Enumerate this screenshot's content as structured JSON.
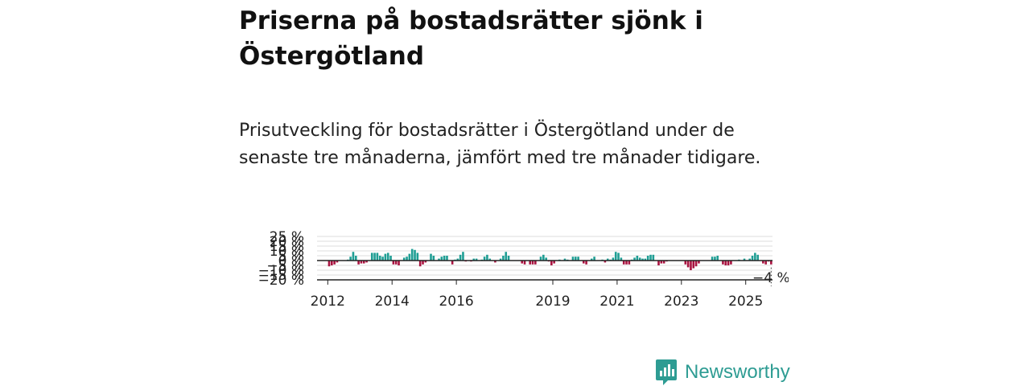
{
  "title": "Priserna på bostadsrätter sjönk i Östergötland",
  "subtitle": "Prisutveckling för bostadsrätter i Östergötland under de senaste tre månaderna, jämfört med tre månader tidigare.",
  "brand": {
    "name": "Newsworthy",
    "logo_icon": "bar-chart-speech-bubble-icon"
  },
  "colors": {
    "positive": "#1f9e94",
    "negative": "#a8123f",
    "brand": "#2e9c93"
  },
  "chart_data": {
    "type": "bar",
    "title": "",
    "xlabel": "",
    "ylabel": "",
    "ylim": [
      -20,
      25
    ],
    "yticks": [
      -20,
      -15,
      -10,
      -5,
      0,
      5,
      10,
      15,
      20,
      25
    ],
    "ytick_labels": [
      "−20 %",
      "−15 %",
      "−10 %",
      "−5 %",
      "0 %",
      "5 %",
      "10 %",
      "15 %",
      "20 %",
      "25 %"
    ],
    "xticks": [
      {
        "year": 2012,
        "label": "2012"
      },
      {
        "year": 2014,
        "label": "2014"
      },
      {
        "year": 2016,
        "label": "2016"
      },
      {
        "year": 2019,
        "label": "2019"
      },
      {
        "year": 2021,
        "label": "2021"
      },
      {
        "year": 2023,
        "label": "2023"
      },
      {
        "year": 2025,
        "label": "2025"
      }
    ],
    "start": {
      "year": 2011,
      "month": 9
    },
    "frequency": "monthly",
    "values": [
      0,
      0,
      0,
      0,
      -6,
      -5,
      -4,
      -2,
      0,
      0,
      0,
      1,
      4,
      9,
      5,
      -4,
      -3,
      -3,
      -2,
      0,
      8,
      8,
      8,
      5,
      4,
      7,
      8,
      5,
      -4,
      -4,
      -5,
      0,
      3,
      4,
      7,
      12,
      11,
      8,
      -6,
      -4,
      -2,
      0,
      7,
      5,
      0,
      2,
      4,
      5,
      5,
      0,
      -4,
      1,
      2,
      6,
      9,
      -1,
      0,
      -1,
      2,
      2,
      0,
      1,
      4,
      6,
      2,
      0,
      -2,
      0,
      2,
      5,
      9,
      5,
      0,
      0,
      0,
      0,
      -3,
      -4,
      0,
      -4,
      -4,
      -4,
      0,
      4,
      6,
      3,
      -1,
      -5,
      -3,
      0,
      1,
      0,
      2,
      1,
      0,
      4,
      4,
      4,
      0,
      -3,
      -4,
      0,
      2,
      4,
      0,
      0,
      1,
      -2,
      2,
      1,
      3,
      9,
      8,
      3,
      -4,
      -4,
      -4,
      1,
      3,
      5,
      3,
      2,
      2,
      5,
      6,
      6,
      0,
      -5,
      -3,
      -3,
      -1,
      0,
      0,
      0,
      0,
      0,
      0,
      -4,
      -7,
      -10,
      -8,
      -6,
      -3,
      0,
      0,
      0,
      0,
      4,
      4,
      5,
      0,
      -4,
      -5,
      -5,
      -4,
      0,
      0,
      1,
      0,
      2,
      0,
      2,
      5,
      8,
      6,
      0,
      -3,
      -4,
      -1,
      -4
    ],
    "last_value_label": "−4 %"
  }
}
